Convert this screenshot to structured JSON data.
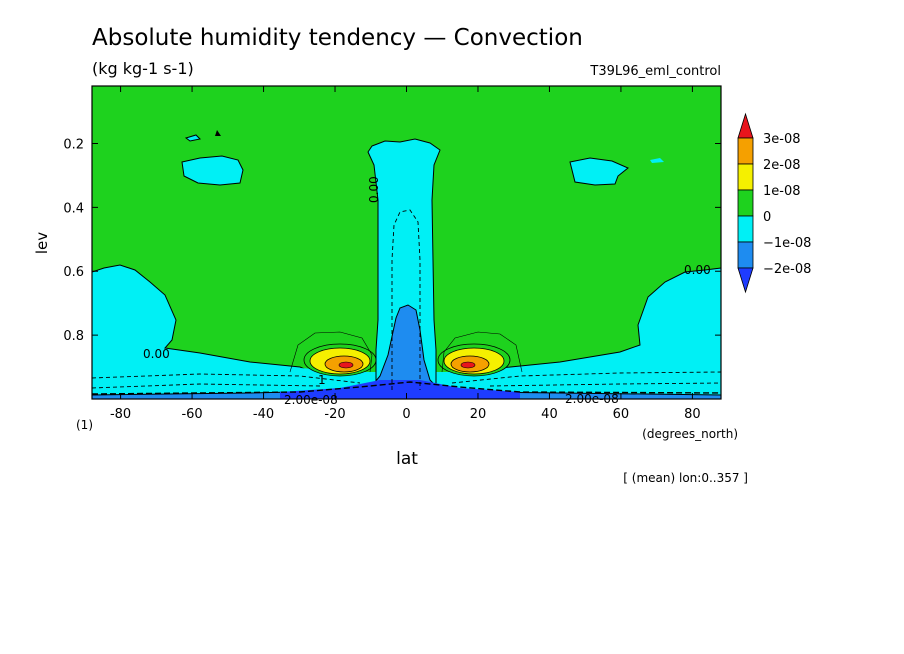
{
  "chart_data": {
    "type": "heatmap",
    "title": "Absolute humidity tendency — Convection",
    "units": "(kg kg-1 s-1)",
    "experiment": "T39L96_eml_control",
    "xlabel": "lat",
    "x_units": "(degrees_north)",
    "ylabel": "lev",
    "panel_label": "(1)",
    "mean_note": "[ (mean) lon:0..357 ]",
    "xlim": [
      -88,
      88
    ],
    "ylim": [
      1.0,
      0.02
    ],
    "x_ticks": [
      "-80",
      "-60",
      "-40",
      "-20",
      "0",
      "20",
      "40",
      "60",
      "80"
    ],
    "y_ticks": [
      "0.2",
      "0.4",
      "0.6",
      "0.8"
    ],
    "y_tick_values": [
      0.2,
      0.4,
      0.6,
      0.8
    ],
    "x_tick_values": [
      -80,
      -60,
      -40,
      -20,
      0,
      20,
      40,
      60,
      80
    ],
    "levels": [
      -3e-08,
      -2e-08,
      -1e-08,
      0,
      1e-08,
      2e-08,
      3e-08
    ],
    "colorbar": [
      {
        "label": "3e-08",
        "color": "#e8141c"
      },
      {
        "label": "2e-08",
        "color": "#f5a000"
      },
      {
        "label": "1e-08",
        "color": "#f5f000"
      },
      {
        "label": "0",
        "color": "#1ed21e"
      },
      {
        "label": "−1e-08",
        "color": "#00f0f5"
      },
      {
        "label": "−2e-08",
        "color": "#1e8cf0"
      },
      {
        "label": "",
        "color": "#1e3cff"
      }
    ],
    "contour_labels": [
      "0.00",
      "0.00",
      "0.00",
      "2.00e-08",
      "2.00e-08",
      "1"
    ],
    "features": [
      {
        "name": "deep-convection-drying-column",
        "lat_range": [
          -9,
          9
        ],
        "lev_range": [
          0.18,
          1.0
        ],
        "value": -1e-08
      },
      {
        "name": "equatorial-core-drying",
        "lat_range": [
          -4,
          4
        ],
        "lev_range": [
          0.7,
          1.0
        ],
        "value": -2e-08
      },
      {
        "name": "subtropical-moistening-south",
        "lat_center": -17,
        "lev_center": 0.88,
        "value": 2.5e-08
      },
      {
        "name": "subtropical-moistening-north",
        "lat_center": 17,
        "lev_center": 0.88,
        "value": 2.5e-08
      },
      {
        "name": "high-latitude-drying-south",
        "lat_range": [
          -88,
          -62
        ],
        "lev_range": [
          0.55,
          1.0
        ],
        "value": -1e-08
      },
      {
        "name": "high-latitude-drying-north",
        "lat_range": [
          65,
          88
        ],
        "lev_range": [
          0.55,
          1.0
        ],
        "value": -1e-08
      },
      {
        "name": "upper-drying-patch-south",
        "lat_center": -56,
        "lev_center": 0.27,
        "value": -1e-08
      },
      {
        "name": "upper-drying-patch-north",
        "lat_center": 58,
        "lev_center": 0.27,
        "value": -1e-08
      }
    ]
  }
}
